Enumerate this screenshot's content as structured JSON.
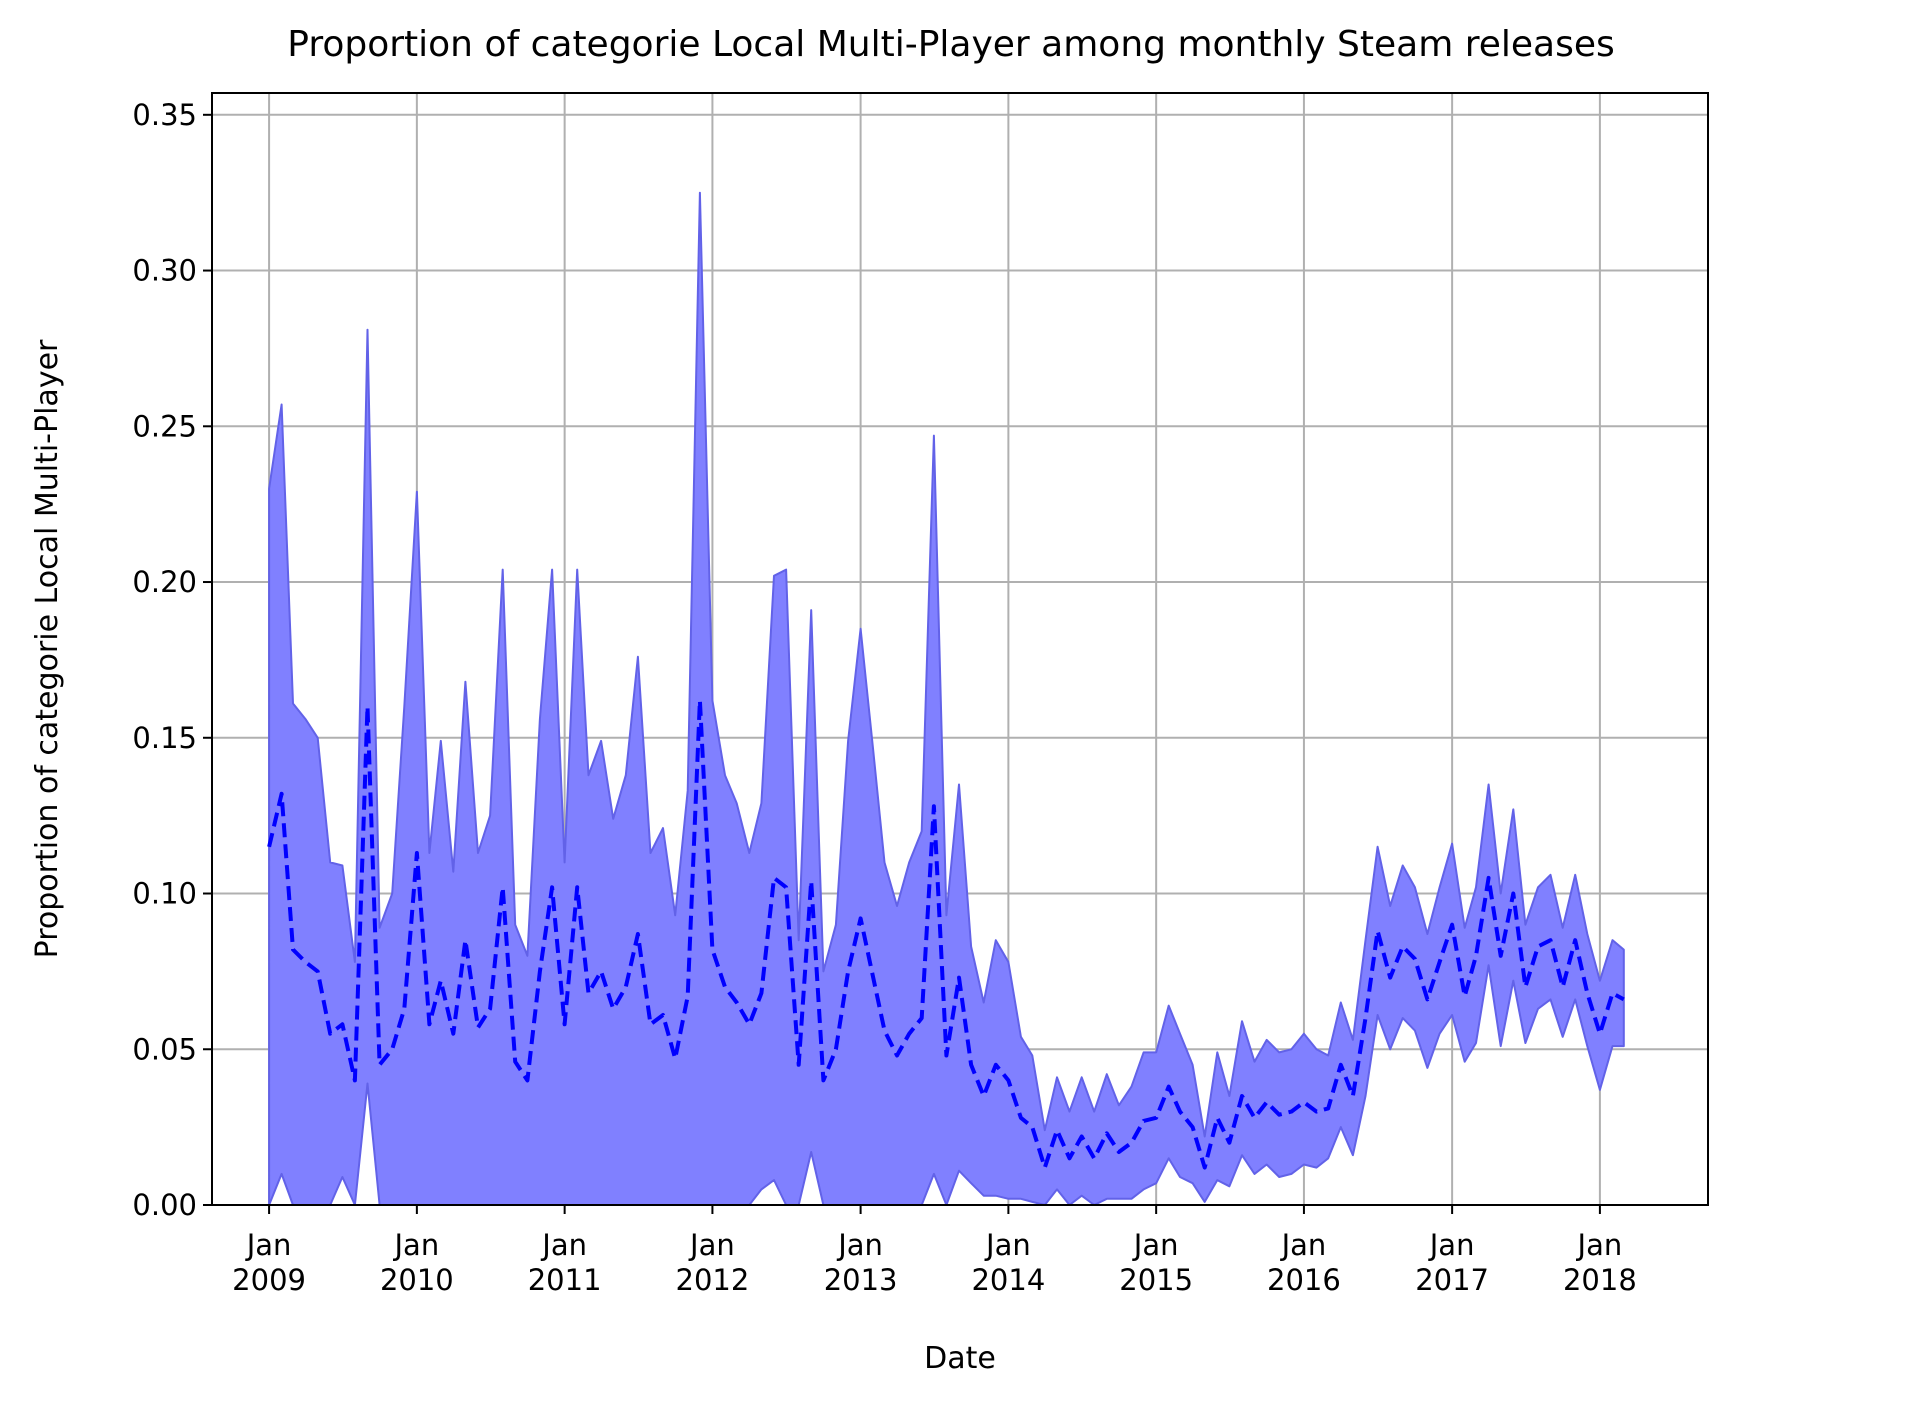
{
  "colors": {
    "band_fill": "#8080ff",
    "band_edge": "#6262e8",
    "mean_line": "#0000ff",
    "grid": "#b0b0b0"
  },
  "chart_data": {
    "type": "area",
    "title": "Proportion of categorie Local Multi-Player among monthly Steam releases",
    "xlabel": "Date",
    "ylabel": "Proportion of categorie Local Multi-Player",
    "xlim": [
      "2008-08-13",
      "2018-09-25"
    ],
    "ylim": [
      0,
      0.357
    ],
    "grid": true,
    "yticks": [
      0.0,
      0.05,
      0.1,
      0.15,
      0.2,
      0.25,
      0.3,
      0.35
    ],
    "ytick_labels": [
      "0.00",
      "0.05",
      "0.10",
      "0.15",
      "0.20",
      "0.25",
      "0.30",
      "0.35"
    ],
    "xticks": [
      {
        "x": "2009-01",
        "month": "Jan",
        "year": "2009"
      },
      {
        "x": "2010-01",
        "month": "Jan",
        "year": "2010"
      },
      {
        "x": "2011-01",
        "month": "Jan",
        "year": "2011"
      },
      {
        "x": "2012-01",
        "month": "Jan",
        "year": "2012"
      },
      {
        "x": "2013-01",
        "month": "Jan",
        "year": "2013"
      },
      {
        "x": "2014-01",
        "month": "Jan",
        "year": "2014"
      },
      {
        "x": "2015-01",
        "month": "Jan",
        "year": "2015"
      },
      {
        "x": "2016-01",
        "month": "Jan",
        "year": "2016"
      },
      {
        "x": "2017-01",
        "month": "Jan",
        "year": "2017"
      },
      {
        "x": "2018-01",
        "month": "Jan",
        "year": "2018"
      }
    ],
    "x": [
      "2009-01",
      "2009-02",
      "2009-03",
      "2009-04",
      "2009-05",
      "2009-06",
      "2009-07",
      "2009-08",
      "2009-09",
      "2009-10",
      "2009-11",
      "2009-12",
      "2010-01",
      "2010-02",
      "2010-03",
      "2010-04",
      "2010-05",
      "2010-06",
      "2010-07",
      "2010-08",
      "2010-09",
      "2010-10",
      "2010-11",
      "2010-12",
      "2011-01",
      "2011-02",
      "2011-03",
      "2011-04",
      "2011-05",
      "2011-06",
      "2011-07",
      "2011-08",
      "2011-09",
      "2011-10",
      "2011-11",
      "2011-12",
      "2012-01",
      "2012-02",
      "2012-03",
      "2012-04",
      "2012-05",
      "2012-06",
      "2012-07",
      "2012-08",
      "2012-09",
      "2012-10",
      "2012-11",
      "2012-12",
      "2013-01",
      "2013-02",
      "2013-03",
      "2013-04",
      "2013-05",
      "2013-06",
      "2013-07",
      "2013-08",
      "2013-09",
      "2013-10",
      "2013-11",
      "2013-12",
      "2014-01",
      "2014-02",
      "2014-03",
      "2014-04",
      "2014-05",
      "2014-06",
      "2014-07",
      "2014-08",
      "2014-09",
      "2014-10",
      "2014-11",
      "2014-12",
      "2015-01",
      "2015-02",
      "2015-03",
      "2015-04",
      "2015-05",
      "2015-06",
      "2015-07",
      "2015-08",
      "2015-09",
      "2015-10",
      "2015-11",
      "2015-12",
      "2016-01",
      "2016-02",
      "2016-03",
      "2016-04",
      "2016-05",
      "2016-06",
      "2016-07",
      "2016-08",
      "2016-09",
      "2016-10",
      "2016-11",
      "2016-12",
      "2017-01",
      "2017-02",
      "2017-03",
      "2017-04",
      "2017-05",
      "2017-06",
      "2017-07",
      "2017-08",
      "2017-09",
      "2017-10",
      "2017-11",
      "2017-12",
      "2018-01",
      "2018-02",
      "2018-03"
    ],
    "series": [
      {
        "role": "mean",
        "style": "dashed",
        "values": [
          0.115,
          0.132,
          0.082,
          0.078,
          0.075,
          0.055,
          0.058,
          0.04,
          0.16,
          0.045,
          0.05,
          0.063,
          0.113,
          0.058,
          0.072,
          0.055,
          0.085,
          0.057,
          0.063,
          0.102,
          0.046,
          0.04,
          0.075,
          0.102,
          0.058,
          0.102,
          0.068,
          0.075,
          0.063,
          0.07,
          0.087,
          0.058,
          0.061,
          0.047,
          0.067,
          0.162,
          0.082,
          0.07,
          0.065,
          0.058,
          0.068,
          0.105,
          0.102,
          0.045,
          0.104,
          0.04,
          0.05,
          0.075,
          0.092,
          0.073,
          0.056,
          0.048,
          0.055,
          0.06,
          0.128,
          0.048,
          0.073,
          0.045,
          0.035,
          0.045,
          0.04,
          0.028,
          0.025,
          0.012,
          0.024,
          0.015,
          0.022,
          0.015,
          0.023,
          0.017,
          0.02,
          0.027,
          0.028,
          0.038,
          0.03,
          0.025,
          0.012,
          0.028,
          0.02,
          0.035,
          0.028,
          0.033,
          0.029,
          0.03,
          0.033,
          0.03,
          0.031,
          0.045,
          0.035,
          0.06,
          0.088,
          0.073,
          0.083,
          0.079,
          0.066,
          0.078,
          0.09,
          0.067,
          0.08,
          0.105,
          0.08,
          0.1,
          0.07,
          0.083,
          0.085,
          0.07,
          0.085,
          0.068,
          0.055,
          0.068,
          0.066
        ]
      },
      {
        "role": "upper",
        "values": [
          0.23,
          0.257,
          0.161,
          0.156,
          0.15,
          0.11,
          0.109,
          0.078,
          0.281,
          0.089,
          0.1,
          0.16,
          0.229,
          0.113,
          0.149,
          0.107,
          0.168,
          0.113,
          0.125,
          0.204,
          0.09,
          0.08,
          0.156,
          0.204,
          0.11,
          0.204,
          0.138,
          0.149,
          0.124,
          0.138,
          0.176,
          0.113,
          0.121,
          0.093,
          0.133,
          0.325,
          0.162,
          0.138,
          0.129,
          0.113,
          0.129,
          0.202,
          0.204,
          0.085,
          0.191,
          0.075,
          0.09,
          0.149,
          0.185,
          0.146,
          0.11,
          0.096,
          0.11,
          0.12,
          0.247,
          0.093,
          0.135,
          0.083,
          0.065,
          0.085,
          0.078,
          0.054,
          0.048,
          0.024,
          0.041,
          0.03,
          0.041,
          0.03,
          0.042,
          0.032,
          0.038,
          0.049,
          0.049,
          0.064,
          0.055,
          0.045,
          0.022,
          0.049,
          0.035,
          0.059,
          0.046,
          0.053,
          0.049,
          0.05,
          0.055,
          0.05,
          0.048,
          0.065,
          0.053,
          0.085,
          0.115,
          0.096,
          0.109,
          0.102,
          0.087,
          0.102,
          0.116,
          0.089,
          0.102,
          0.135,
          0.1,
          0.127,
          0.09,
          0.102,
          0.106,
          0.089,
          0.106,
          0.087,
          0.072,
          0.085,
          0.082
        ]
      },
      {
        "role": "lower",
        "values": [
          0.0,
          0.01,
          0.0,
          0.0,
          0.0,
          0.0,
          0.009,
          0.0,
          0.039,
          0.0,
          0.0,
          0.0,
          0.0,
          0.0,
          0.0,
          0.0,
          0.0,
          0.0,
          0.0,
          0.0,
          0.0,
          0.0,
          0.0,
          0.0,
          0.0,
          0.0,
          0.0,
          0.0,
          0.0,
          0.0,
          0.0,
          0.0,
          0.0,
          0.0,
          0.0,
          0.0,
          0.0,
          0.0,
          0.0,
          0.0,
          0.005,
          0.008,
          0.0,
          0.0,
          0.017,
          0.0,
          0.0,
          0.0,
          0.0,
          0.0,
          0.0,
          0.0,
          0.0,
          0.0,
          0.01,
          0.0,
          0.011,
          0.007,
          0.003,
          0.003,
          0.002,
          0.002,
          0.001,
          0.0,
          0.005,
          0.0,
          0.003,
          0.0,
          0.002,
          0.002,
          0.002,
          0.005,
          0.007,
          0.015,
          0.009,
          0.007,
          0.001,
          0.008,
          0.006,
          0.016,
          0.01,
          0.013,
          0.009,
          0.01,
          0.013,
          0.012,
          0.015,
          0.025,
          0.016,
          0.035,
          0.061,
          0.05,
          0.06,
          0.056,
          0.044,
          0.055,
          0.061,
          0.046,
          0.052,
          0.077,
          0.051,
          0.072,
          0.052,
          0.063,
          0.066,
          0.054,
          0.066,
          0.051,
          0.037,
          0.051,
          0.051
        ]
      }
    ]
  }
}
